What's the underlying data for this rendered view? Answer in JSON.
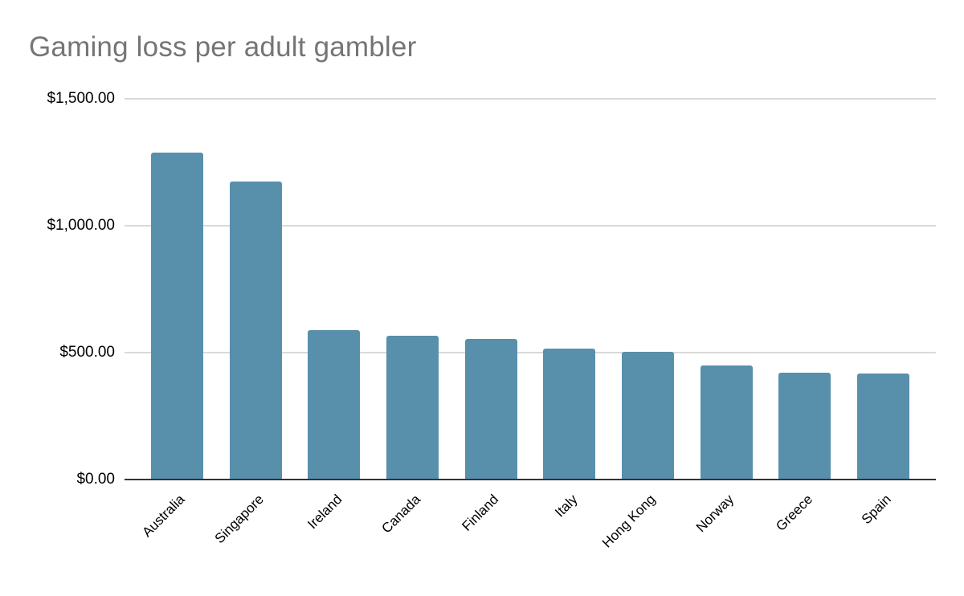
{
  "chart_data": {
    "type": "bar",
    "title": "Gaming loss per adult gambler",
    "categories": [
      "Australia",
      "Singapore",
      "Ireland",
      "Canada",
      "Finland",
      "Italy",
      "Hong Kong",
      "Norway",
      "Greece",
      "Spain"
    ],
    "values": [
      1288,
      1174,
      588,
      568,
      554,
      517,
      503,
      448,
      420,
      418
    ],
    "xlabel": "",
    "ylabel": "",
    "ylim": [
      0,
      1500
    ],
    "y_ticks": [
      {
        "value": 0,
        "label": "$0.00"
      },
      {
        "value": 500,
        "label": "$500.00"
      },
      {
        "value": 1000,
        "label": "$1,000.00"
      },
      {
        "value": 1500,
        "label": "$1,500.00"
      }
    ],
    "grid": true,
    "legend_position": "none",
    "colors": {
      "bar": "#5890AC",
      "title_text": "#757575",
      "axis_text": "#000000",
      "gridline": "#D9D9D9",
      "baseline": "#333333",
      "background": "#FFFFFF"
    }
  }
}
